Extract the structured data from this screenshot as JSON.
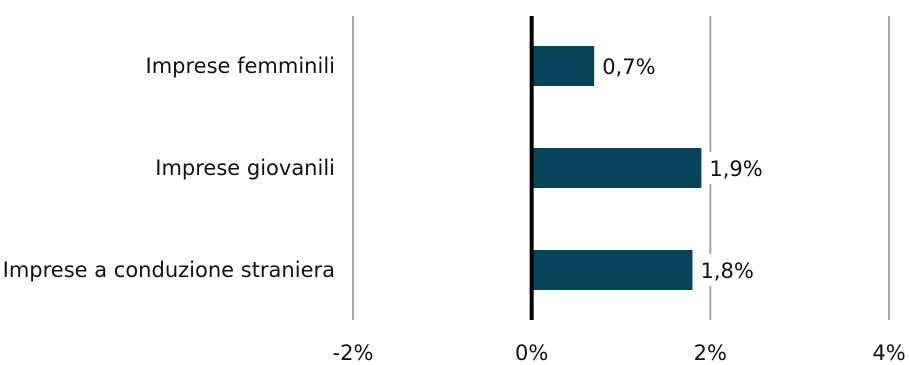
{
  "chart_data": {
    "type": "bar",
    "orientation": "horizontal",
    "categories": [
      "Imprese femminili",
      "Imprese giovanili",
      "Imprese a conduzione straniera"
    ],
    "values": [
      0.7,
      1.9,
      1.8
    ],
    "data_labels": [
      "0,7%",
      "1,9%",
      "1,8%"
    ],
    "xlim": [
      -2,
      4
    ],
    "xticks": [
      -2,
      0,
      2,
      4
    ],
    "xtick_labels": [
      "-2%",
      "0%",
      "2%",
      "4%"
    ],
    "title": "",
    "xlabel": "",
    "ylabel": "",
    "grid": "vertical",
    "legend": "none",
    "colors": {
      "bar": "#084459",
      "grid": "#a6a6a6",
      "zero_line": "#000000",
      "text": "#111111"
    }
  }
}
